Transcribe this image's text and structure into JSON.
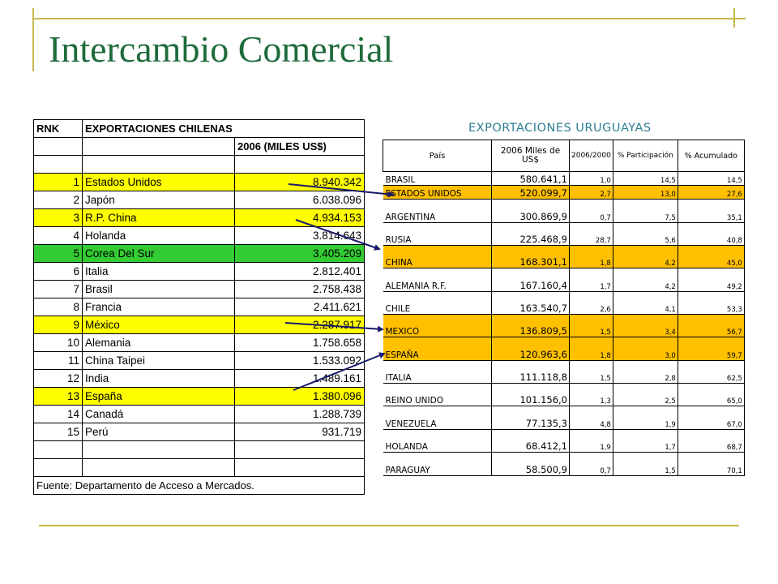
{
  "slide": {
    "title": "Intercambio Comercial"
  },
  "chile_table": {
    "header_rnk": "RNK",
    "header_title": "EXPORTACIONES CHILENAS",
    "header_year": "2006 (MILES US$)",
    "rows": [
      {
        "rank": "1",
        "country": "Estados Unidos",
        "value": "8.940.342",
        "highlight": "yellow"
      },
      {
        "rank": "2",
        "country": "Japón",
        "value": "6.038.096",
        "highlight": "none"
      },
      {
        "rank": "3",
        "country": "R.P. China",
        "value": "4.934.153",
        "highlight": "yellow"
      },
      {
        "rank": "4",
        "country": "Holanda",
        "value": "3.814.643",
        "highlight": "none"
      },
      {
        "rank": "5",
        "country": "Corea Del Sur",
        "value": "3.405.209",
        "highlight": "green"
      },
      {
        "rank": "6",
        "country": "Italia",
        "value": "2.812.401",
        "highlight": "none"
      },
      {
        "rank": "7",
        "country": "Brasil",
        "value": "2.758.438",
        "highlight": "none"
      },
      {
        "rank": "8",
        "country": "Francia",
        "value": "2.411.621",
        "highlight": "none"
      },
      {
        "rank": "9",
        "country": "México",
        "value": "2.287.917",
        "highlight": "yellow"
      },
      {
        "rank": "10",
        "country": "Alemania",
        "value": "1.758.658",
        "highlight": "none"
      },
      {
        "rank": "11",
        "country": "China Taipei",
        "value": "1.533.092",
        "highlight": "none"
      },
      {
        "rank": "12",
        "country": "India",
        "value": "1.489.161",
        "highlight": "none"
      },
      {
        "rank": "13",
        "country": "España",
        "value": "1.380.096",
        "highlight": "yellow"
      },
      {
        "rank": "14",
        "country": "Canadá",
        "value": "1.288.739",
        "highlight": "none"
      },
      {
        "rank": "15",
        "country": "Perú",
        "value": "931.719",
        "highlight": "none"
      }
    ],
    "footer": "Fuente: Departamento de Acceso a Mercados."
  },
  "uruguay_table": {
    "title": "EXPORTACIONES URUGUAYAS",
    "headers": [
      "País",
      "2006 Miles de US$",
      "2006/2000",
      "% Participación",
      "% Acumulado"
    ],
    "rows": [
      {
        "country": "BRASIL",
        "value": "580.641,1",
        "ratio": "1,0",
        "share": "14,5",
        "cum": "14,5",
        "highlight": "none"
      },
      {
        "country": "ESTADOS UNIDOS",
        "value": "520.099,7",
        "ratio": "2,7",
        "share": "13,0",
        "cum": "27,6",
        "highlight": "orange"
      },
      {
        "country": "ARGENTINA",
        "value": "300.869,9",
        "ratio": "0,7",
        "share": "7,5",
        "cum": "35,1",
        "highlight": "none"
      },
      {
        "country": "RUSIA",
        "value": "225.468,9",
        "ratio": "28,7",
        "share": "5,6",
        "cum": "40,8",
        "highlight": "none"
      },
      {
        "country": "CHINA",
        "value": "168.301,1",
        "ratio": "1,8",
        "share": "4,2",
        "cum": "45,0",
        "highlight": "orange"
      },
      {
        "country": "ALEMANIA R.F.",
        "value": "167.160,4",
        "ratio": "1,7",
        "share": "4,2",
        "cum": "49,2",
        "highlight": "none"
      },
      {
        "country": "CHILE",
        "value": "163.540,7",
        "ratio": "2,6",
        "share": "4,1",
        "cum": "53,3",
        "highlight": "none"
      },
      {
        "country": "MEXICO",
        "value": "136.809,5",
        "ratio": "1,5",
        "share": "3,4",
        "cum": "56,7",
        "highlight": "orange"
      },
      {
        "country": "ESPAÑA",
        "value": "120.963,6",
        "ratio": "1,8",
        "share": "3,0",
        "cum": "59,7",
        "highlight": "orange"
      },
      {
        "country": "ITALIA",
        "value": "111.118,8",
        "ratio": "1,5",
        "share": "2,8",
        "cum": "62,5",
        "highlight": "none"
      },
      {
        "country": "REINO UNIDO",
        "value": "101.156,0",
        "ratio": "1,3",
        "share": "2,5",
        "cum": "65,0",
        "highlight": "none"
      },
      {
        "country": "VENEZUELA",
        "value": "77.135,3",
        "ratio": "4,8",
        "share": "1,9",
        "cum": "67,0",
        "highlight": "none"
      },
      {
        "country": "HOLANDA",
        "value": "68.412,1",
        "ratio": "1,9",
        "share": "1,7",
        "cum": "68,7",
        "highlight": "none"
      },
      {
        "country": "PARAGUAY",
        "value": "58.500,9",
        "ratio": "0,7",
        "share": "1,5",
        "cum": "70,1",
        "highlight": "none"
      }
    ]
  },
  "colors": {
    "title": "#1e6b3c",
    "rule": "#c8b84a",
    "yellow_highlight": "#ffff00",
    "green_highlight": "#33cc33",
    "orange_highlight": "#ffc000",
    "uy_title": "#2d7f94"
  }
}
